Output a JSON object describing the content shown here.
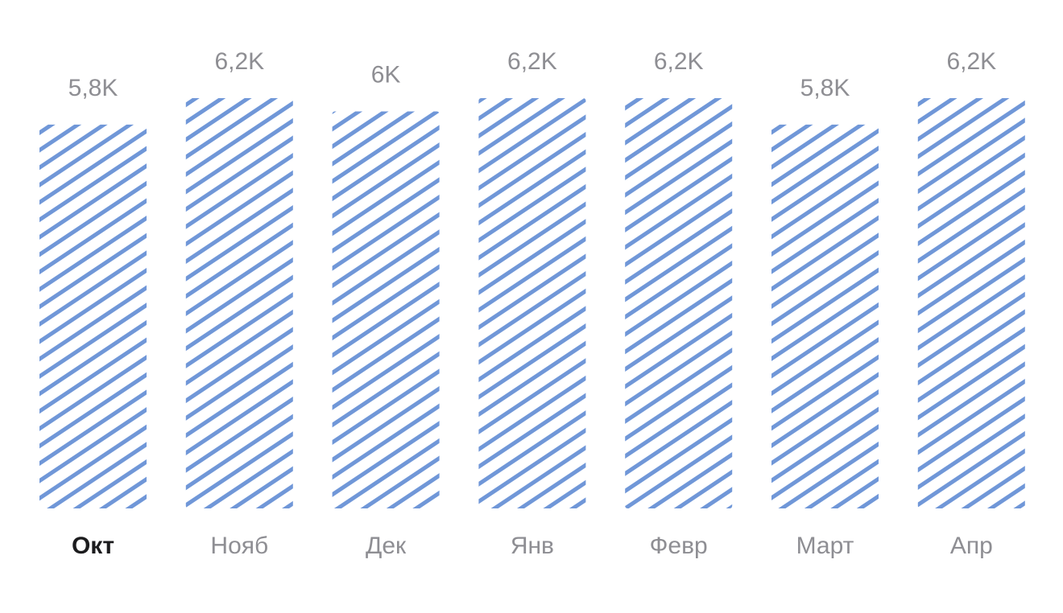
{
  "chart_data": {
    "type": "bar",
    "categories": [
      "Окт",
      "Нояб",
      "Дек",
      "Янв",
      "Февр",
      "Март",
      "Апр"
    ],
    "values": [
      5.8,
      6.2,
      6.0,
      6.2,
      6.2,
      5.8,
      6.2
    ],
    "value_labels": [
      "5,8K",
      "6,2K",
      "6K",
      "6,2K",
      "6,2K",
      "5,8K",
      "6,2K"
    ],
    "selected_category": "Окт",
    "ylim": [
      0,
      6.2
    ],
    "grid": false,
    "colors": {
      "bar_stripe": "#7097d8",
      "value_text": "#8e8e93",
      "category_text": "#8e8e93",
      "selected_text": "#1c1c1e"
    }
  }
}
